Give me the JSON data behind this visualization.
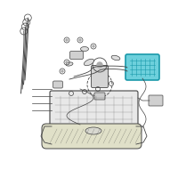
{
  "bg_color": "#ffffff",
  "highlight_color": "#6dd0dc",
  "line_color": "#444444",
  "line_color2": "#666666",
  "fig_width": 2.0,
  "fig_height": 2.0,
  "dpi": 100
}
